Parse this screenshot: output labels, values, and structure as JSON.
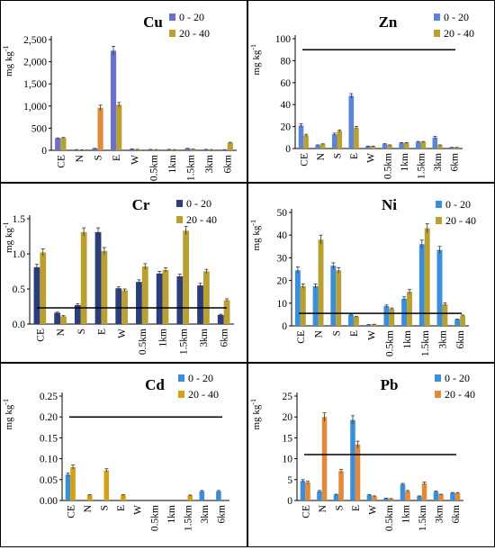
{
  "chart_data": [
    {
      "type": "bar",
      "title": "Cu",
      "ylabel": "mg kg",
      "ylabel_sup": "-1",
      "categories": [
        "CE",
        "N",
        "S",
        "E",
        "W",
        "0.5km",
        "1km",
        "1.5km",
        "3km",
        "6km"
      ],
      "ylim": [
        0,
        2500
      ],
      "yticks": [
        "0",
        "500",
        "1,000",
        "1,500",
        "2,000",
        "2,500"
      ],
      "ytick_values": [
        0,
        500,
        1000,
        1500,
        2000,
        2500
      ],
      "legend_position": "top-right",
      "series": [
        {
          "name": "0 - 20",
          "color": "#6b6fd0",
          "values": [
            270,
            15,
            40,
            2250,
            30,
            20,
            20,
            40,
            20,
            15
          ],
          "errors": [
            10,
            2,
            5,
            100,
            3,
            2,
            2,
            5,
            2,
            2
          ]
        },
        {
          "name": "20 - 40",
          "color": "#b8a032",
          "values": [
            280,
            10,
            960,
            1030,
            20,
            15,
            15,
            25,
            15,
            170
          ],
          "errors": [
            10,
            2,
            60,
            50,
            2,
            2,
            2,
            3,
            2,
            10
          ]
        }
      ],
      "errors_colored": [
        false,
        true,
        false,
        false,
        false,
        false,
        false,
        false,
        false,
        false
      ],
      "s_bar_color": "#e08a3c"
    },
    {
      "type": "bar",
      "title": "Zn",
      "ylabel": "mg kg",
      "ylabel_sup": "-1",
      "categories": [
        "CE",
        "N",
        "S",
        "E",
        "W",
        "0.5km",
        "1km",
        "1.5km",
        "3km",
        "6km"
      ],
      "ylim": [
        0,
        100
      ],
      "yticks": [
        "0",
        "20",
        "40",
        "60",
        "80",
        "100"
      ],
      "ytick_values": [
        0,
        20,
        40,
        60,
        80,
        100
      ],
      "reference_line": 90,
      "legend_position": "top-right",
      "series": [
        {
          "name": "0 - 20",
          "color": "#5b84d6",
          "values": [
            21,
            3,
            13,
            48,
            2,
            4,
            5,
            6,
            10,
            1
          ],
          "errors": [
            1.5,
            0.3,
            1,
            2,
            0.2,
            0.4,
            0.4,
            0.5,
            1,
            0.1
          ]
        },
        {
          "name": "20 - 40",
          "color": "#b8a032",
          "values": [
            12,
            4,
            16,
            19,
            2,
            3,
            5,
            6,
            3,
            1
          ],
          "errors": [
            1,
            0.3,
            1,
            1.2,
            0.2,
            0.3,
            0.4,
            0.4,
            0.3,
            0.1
          ]
        }
      ]
    },
    {
      "type": "bar",
      "title": "Cr",
      "ylabel": "mg kg",
      "ylabel_sup": "-1",
      "categories": [
        "CE",
        "N",
        "S",
        "E",
        "W",
        "0.5km",
        "1km",
        "1.5km",
        "3km",
        "6km"
      ],
      "ylim": [
        0,
        1.5
      ],
      "yticks": [
        "0.0",
        "0.5",
        "1.0",
        "1.5"
      ],
      "ytick_values": [
        0,
        0.5,
        1.0,
        1.5
      ],
      "reference_line": 0.23,
      "legend_position": "top-right",
      "series": [
        {
          "name": "0 - 20",
          "color": "#2c3e7a",
          "values": [
            0.81,
            0.16,
            0.27,
            1.31,
            0.51,
            0.6,
            0.72,
            0.68,
            0.55,
            0.13
          ],
          "errors": [
            0.04,
            0.01,
            0.02,
            0.06,
            0.02,
            0.03,
            0.03,
            0.03,
            0.03,
            0.01
          ]
        },
        {
          "name": "20 - 40",
          "color": "#b8a032",
          "values": [
            1.02,
            0.11,
            1.31,
            1.04,
            0.48,
            0.82,
            0.77,
            1.33,
            0.75,
            0.34
          ],
          "errors": [
            0.05,
            0.01,
            0.06,
            0.05,
            0.02,
            0.04,
            0.03,
            0.06,
            0.03,
            0.02
          ]
        }
      ]
    },
    {
      "type": "bar",
      "title": "Ni",
      "ylabel": "mg kg",
      "ylabel_sup": "-1",
      "categories": [
        "CE",
        "N",
        "S",
        "E",
        "W",
        "0.5km",
        "1km",
        "1.5km",
        "3km",
        "6km"
      ],
      "ylim": [
        0,
        50
      ],
      "yticks": [
        "0",
        "10",
        "20",
        "30",
        "40",
        "50"
      ],
      "ytick_values": [
        0,
        10,
        20,
        30,
        40,
        50
      ],
      "reference_line": 5.5,
      "legend_position": "top-right",
      "series": [
        {
          "name": "0 - 20",
          "color": "#3b8fd8",
          "values": [
            24.5,
            17.5,
            26.5,
            4.8,
            0.5,
            8.7,
            12,
            36,
            33.5,
            2.8
          ],
          "errors": [
            1.5,
            1,
            1.3,
            0.3,
            0.1,
            0.5,
            0.8,
            1.8,
            1.5,
            0.2
          ]
        },
        {
          "name": "20 - 40",
          "color": "#b8a032",
          "values": [
            17.5,
            38,
            24.5,
            4,
            0.6,
            7.5,
            15,
            43,
            9.5,
            4.5
          ],
          "errors": [
            1,
            2,
            1.2,
            0.2,
            0.1,
            0.4,
            1,
            2,
            0.6,
            0.3
          ]
        }
      ]
    },
    {
      "type": "bar",
      "title": "Cd",
      "ylabel": "mg kg",
      "ylabel_sup": "-1",
      "categories": [
        "CE",
        "N",
        "S",
        "E",
        "W",
        "0.5km",
        "1km",
        "1.5km",
        "3km",
        "6km"
      ],
      "ylim": [
        0,
        0.25
      ],
      "yticks": [
        "0.00",
        "0.05",
        "0.10",
        "0.15",
        "0.20",
        "0.25"
      ],
      "ytick_values": [
        0,
        0.05,
        0.1,
        0.15,
        0.2,
        0.25
      ],
      "reference_line": 0.2,
      "legend_position": "top-right",
      "series": [
        {
          "name": "0 - 20",
          "color": "#3b8fd8",
          "values": [
            0.062,
            0,
            0,
            0,
            0,
            0,
            0,
            0,
            0.022,
            0.022
          ],
          "errors": [
            0.004,
            0,
            0,
            0,
            0,
            0,
            0,
            0,
            0.002,
            0.002
          ]
        },
        {
          "name": "20 - 40",
          "color": "#d4a018",
          "values": [
            0.08,
            0.013,
            0.072,
            0.013,
            0,
            0,
            0,
            0.012,
            0,
            0
          ],
          "errors": [
            0.005,
            0.001,
            0.004,
            0.001,
            0,
            0,
            0,
            0.001,
            0,
            0
          ]
        }
      ]
    },
    {
      "type": "bar",
      "title": "Pb",
      "ylabel": "mg kg",
      "ylabel_sup": "-1",
      "categories": [
        "CE",
        "N",
        "S",
        "E",
        "W",
        "0.5km",
        "1km",
        "1.5km",
        "3km",
        "6km"
      ],
      "ylim": [
        0,
        25
      ],
      "yticks": [
        "0",
        "5",
        "10",
        "15",
        "20",
        "25"
      ],
      "ytick_values": [
        0,
        5,
        10,
        15,
        20,
        25
      ],
      "reference_line": 11,
      "legend_position": "top-right",
      "series": [
        {
          "name": "0 - 20",
          "color": "#3b8fd8",
          "values": [
            4.7,
            2.2,
            1.4,
            19.3,
            1.3,
            0.5,
            3.9,
            1,
            2.1,
            1.8
          ],
          "errors": [
            0.3,
            0.2,
            0.1,
            1,
            0.1,
            0.05,
            0.2,
            0.1,
            0.2,
            0.1
          ]
        },
        {
          "name": "20 - 40",
          "color": "#e08a3c",
          "values": [
            4.3,
            20,
            7,
            13.4,
            1,
            0.4,
            2.2,
            4.1,
            1.4,
            1.8
          ],
          "errors": [
            0.3,
            1,
            0.4,
            0.8,
            0.1,
            0.05,
            0.2,
            0.3,
            0.1,
            0.1
          ]
        }
      ]
    }
  ]
}
